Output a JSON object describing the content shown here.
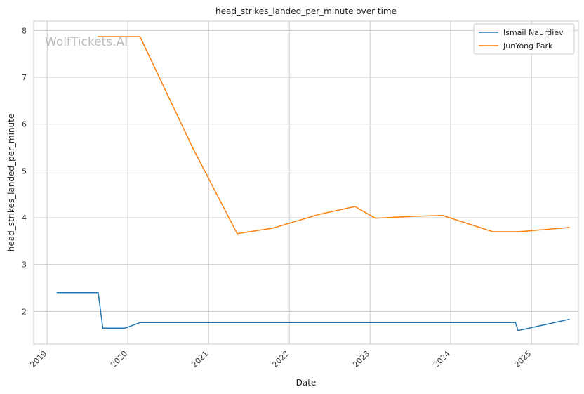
{
  "chart_data": {
    "type": "line",
    "title": "head_strikes_landed_per_minute over time",
    "xlabel": "Date",
    "ylabel": "head_strikes_landed_per_minute",
    "watermark": "WolfTickets.AI",
    "x_ticks": [
      "2019",
      "2020",
      "2021",
      "2022",
      "2023",
      "2024",
      "2025"
    ],
    "y_ticks": [
      2,
      3,
      4,
      5,
      6,
      7,
      8
    ],
    "xlim": [
      "2018-11-01",
      "2025-08-01"
    ],
    "ylim": [
      1.3,
      8.2
    ],
    "grid": true,
    "legend_position": "top-right",
    "series": [
      {
        "name": "Ismail Naurdiev",
        "color": "#1f77b4",
        "points": [
          [
            "2019-02-15",
            2.4
          ],
          [
            "2019-08-20",
            2.4
          ],
          [
            "2019-09-10",
            1.64
          ],
          [
            "2019-12-20",
            1.64
          ],
          [
            "2020-02-25",
            1.76
          ],
          [
            "2024-10-20",
            1.76
          ],
          [
            "2024-11-01",
            1.59
          ],
          [
            "2025-06-20",
            1.83
          ]
        ]
      },
      {
        "name": "JunYong Park",
        "color": "#ff7f0e",
        "points": [
          [
            "2019-08-20",
            7.87
          ],
          [
            "2020-02-25",
            7.87
          ],
          [
            "2020-10-20",
            5.5
          ],
          [
            "2021-05-10",
            3.66
          ],
          [
            "2021-10-20",
            3.78
          ],
          [
            "2022-05-15",
            4.07
          ],
          [
            "2022-10-25",
            4.24
          ],
          [
            "2023-01-25",
            3.99
          ],
          [
            "2023-07-15",
            4.03
          ],
          [
            "2023-11-25",
            4.05
          ],
          [
            "2024-07-10",
            3.7
          ],
          [
            "2024-11-01",
            3.7
          ],
          [
            "2025-06-20",
            3.79
          ]
        ]
      }
    ]
  }
}
